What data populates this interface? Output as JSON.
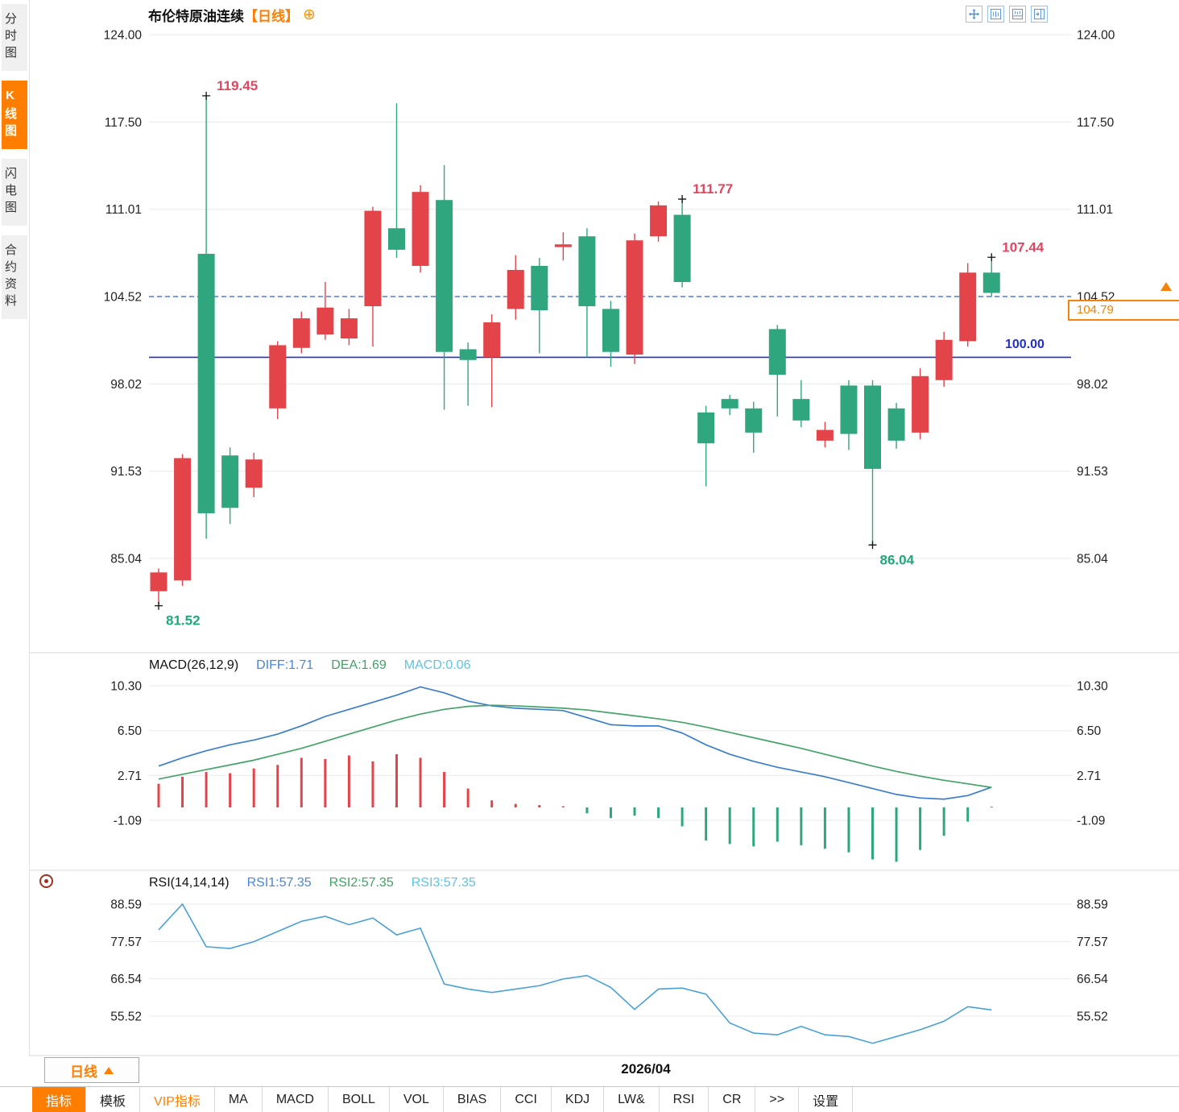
{
  "sidebar": {
    "tabs": [
      {
        "label": "分时图",
        "selected": false
      },
      {
        "label": "K线图",
        "selected": true
      },
      {
        "label": "闪电图",
        "selected": false
      },
      {
        "label": "合约资料",
        "selected": false
      }
    ]
  },
  "header": {
    "title": "布伦特原油连续",
    "period_tag": "【日线】",
    "add_icon": "⊕"
  },
  "top_icons": [
    {
      "name": "pan-icon"
    },
    {
      "name": "kline-layout-icon"
    },
    {
      "name": "indicator-layout-icon"
    },
    {
      "name": "split-panel-icon"
    }
  ],
  "price_panel": {
    "y_labels": [
      "124.00",
      "117.50",
      "111.01",
      "104.52",
      "98.02",
      "91.53",
      "85.04"
    ],
    "baseline_label": "100.00",
    "current_price": "104.79"
  },
  "macd_panel": {
    "title": "MACD(26,12,9)",
    "diff_label": "DIFF:1.71",
    "dea_label": "DEA:1.69",
    "macd_label": "MACD:0.06",
    "y_labels": [
      "10.30",
      "6.50",
      "2.71",
      "-1.09"
    ]
  },
  "rsi_panel": {
    "title": "RSI(14,14,14)",
    "rsi1_label": "RSI1:57.35",
    "rsi2_label": "RSI2:57.35",
    "rsi3_label": "RSI3:57.35",
    "y_labels": [
      "88.59",
      "77.57",
      "66.54",
      "55.52"
    ]
  },
  "bottom": {
    "period_button": "日线",
    "date_label": "2026/04",
    "tabs": [
      {
        "label": "指标",
        "state": "selected"
      },
      {
        "label": "模板",
        "state": "normal"
      },
      {
        "label": "VIP指标",
        "state": "vip"
      },
      {
        "label": "MA",
        "state": "normal"
      },
      {
        "label": "MACD",
        "state": "normal"
      },
      {
        "label": "BOLL",
        "state": "normal"
      },
      {
        "label": "VOL",
        "state": "normal"
      },
      {
        "label": "BIAS",
        "state": "normal"
      },
      {
        "label": "CCI",
        "state": "normal"
      },
      {
        "label": "KDJ",
        "state": "normal"
      },
      {
        "label": "LW&",
        "state": "normal"
      },
      {
        "label": "RSI",
        "state": "normal"
      },
      {
        "label": "CR",
        "state": "normal"
      },
      {
        "label": ">>",
        "state": "normal"
      },
      {
        "label": "设置",
        "state": "normal"
      }
    ]
  },
  "colors": {
    "up": "#e2444a",
    "down": "#2fa67e",
    "annotation_high": "#e0465f",
    "annotation_low": "#1ea878",
    "prev_close_line": "#4d7bdb",
    "baseline": "#2230cc",
    "price_tag": "#f5820a",
    "diff_line": "#3b7dcc",
    "dea_line": "#44a368",
    "rsi_line": "#4aa0d8",
    "accent_orange": "#ff7e00",
    "grid": "#e9e9e9",
    "axis_text": "#222222",
    "marker": "#111111"
  },
  "chart_data": [
    {
      "type": "candlestick",
      "symbol": "布伦特原油连续",
      "period": "日线",
      "ylim": [
        81,
        124
      ],
      "y_ticks": [
        124.0,
        117.5,
        111.01,
        104.52,
        98.02,
        91.53,
        85.04
      ],
      "prev_close": 104.52,
      "last_price": 104.79,
      "baseline": 100.0,
      "candles": [
        [
          82.6,
          84.3,
          81.52,
          84.0
        ],
        [
          83.4,
          92.8,
          83.0,
          92.5
        ],
        [
          107.7,
          119.45,
          86.5,
          88.4
        ],
        [
          92.7,
          93.3,
          87.6,
          88.8
        ],
        [
          90.3,
          92.9,
          89.6,
          92.4
        ],
        [
          96.2,
          101.2,
          95.4,
          100.9
        ],
        [
          100.7,
          103.4,
          100.3,
          102.9
        ],
        [
          101.7,
          105.6,
          101.3,
          103.7
        ],
        [
          101.4,
          103.6,
          100.9,
          102.9
        ],
        [
          103.8,
          111.2,
          100.8,
          110.9
        ],
        [
          109.6,
          118.9,
          107.4,
          108.0
        ],
        [
          106.8,
          112.8,
          106.3,
          112.3
        ],
        [
          111.7,
          114.3,
          96.1,
          100.4
        ],
        [
          100.6,
          101.1,
          96.4,
          99.8
        ],
        [
          100.0,
          103.2,
          96.3,
          102.6
        ],
        [
          103.6,
          107.6,
          102.8,
          106.5
        ],
        [
          106.8,
          107.4,
          100.3,
          103.5
        ],
        [
          108.2,
          109.3,
          107.2,
          108.4
        ],
        [
          109.0,
          109.6,
          100.0,
          103.8
        ],
        [
          103.6,
          104.2,
          99.3,
          100.4
        ],
        [
          100.2,
          109.2,
          99.5,
          108.7
        ],
        [
          109.0,
          111.6,
          108.6,
          111.3
        ],
        [
          110.6,
          111.77,
          105.2,
          105.6
        ],
        [
          95.9,
          96.4,
          90.4,
          93.6
        ],
        [
          96.9,
          97.2,
          95.7,
          96.2
        ],
        [
          96.2,
          96.7,
          92.9,
          94.4
        ],
        [
          102.1,
          102.4,
          95.6,
          98.7
        ],
        [
          96.9,
          98.3,
          94.8,
          95.3
        ],
        [
          93.8,
          95.2,
          93.3,
          94.6
        ],
        [
          97.9,
          98.3,
          93.1,
          94.3
        ],
        [
          97.9,
          98.3,
          86.04,
          91.7
        ],
        [
          96.2,
          96.6,
          93.2,
          93.8
        ],
        [
          94.4,
          99.2,
          93.9,
          98.6
        ],
        [
          98.3,
          101.9,
          97.8,
          101.3
        ],
        [
          101.2,
          107.0,
          100.8,
          106.3
        ],
        [
          106.3,
          107.44,
          104.5,
          104.79
        ]
      ],
      "annotations": [
        {
          "index": 2,
          "kind": "high",
          "label": "119.45"
        },
        {
          "index": 0,
          "kind": "low",
          "label": "81.52"
        },
        {
          "index": 22,
          "kind": "high",
          "label": "111.77"
        },
        {
          "index": 30,
          "kind": "low",
          "label": "86.04"
        },
        {
          "index": 35,
          "kind": "high",
          "label": "107.44"
        }
      ]
    },
    {
      "type": "macd",
      "title": "MACD(26,12,9)",
      "y_ticks": [
        10.3,
        6.5,
        2.71,
        -1.09
      ],
      "latest": {
        "diff": 1.71,
        "dea": 1.69,
        "macd": 0.06
      },
      "diff": [
        3.5,
        4.2,
        4.8,
        5.3,
        5.7,
        6.2,
        6.9,
        7.7,
        8.3,
        8.9,
        9.5,
        10.2,
        9.7,
        9.0,
        8.6,
        8.4,
        8.3,
        8.2,
        7.6,
        7.0,
        6.9,
        6.9,
        6.3,
        5.3,
        4.5,
        3.9,
        3.4,
        3.0,
        2.6,
        2.1,
        1.6,
        1.1,
        0.8,
        0.7,
        1.0,
        1.71
      ],
      "dea": [
        2.4,
        2.8,
        3.2,
        3.6,
        4.0,
        4.5,
        5.0,
        5.6,
        6.2,
        6.8,
        7.4,
        7.9,
        8.3,
        8.55,
        8.65,
        8.6,
        8.5,
        8.4,
        8.25,
        8.0,
        7.75,
        7.5,
        7.2,
        6.8,
        6.35,
        5.9,
        5.45,
        5.0,
        4.5,
        4.0,
        3.5,
        3.05,
        2.65,
        2.3,
        2.0,
        1.69
      ],
      "hist": [
        2.0,
        2.6,
        3.0,
        2.9,
        3.3,
        3.6,
        4.2,
        4.1,
        4.4,
        3.9,
        4.5,
        4.2,
        3.0,
        1.6,
        0.6,
        0.3,
        0.2,
        0.1,
        -0.5,
        -0.9,
        -0.7,
        -0.9,
        -1.6,
        -2.8,
        -3.1,
        -3.3,
        -2.9,
        -3.2,
        -3.5,
        -3.8,
        -4.4,
        -4.6,
        -3.6,
        -2.4,
        -1.2,
        0.06
      ]
    },
    {
      "type": "line",
      "title": "RSI(14,14,14)",
      "y_ticks": [
        88.59,
        77.57,
        66.54,
        55.52
      ],
      "latest": {
        "rsi1": 57.35,
        "rsi2": 57.35,
        "rsi3": 57.35
      },
      "values": [
        81,
        88.6,
        76,
        75.5,
        77.5,
        80.5,
        83.5,
        85,
        82.5,
        84.5,
        79.5,
        81.5,
        65,
        63.5,
        62.5,
        63.5,
        64.5,
        66.5,
        67.5,
        64,
        57.5,
        63.5,
        63.8,
        62,
        53.5,
        50.5,
        50,
        52.5,
        50,
        49.5,
        47.5,
        49.5,
        51.5,
        54,
        58.3,
        57.35
      ]
    }
  ]
}
